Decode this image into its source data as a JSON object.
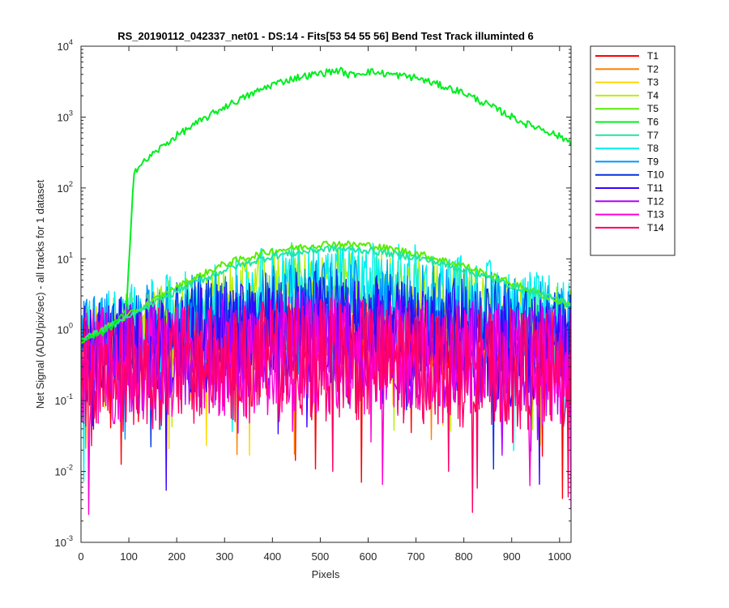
{
  "chart_data": {
    "type": "line",
    "title": "RS_20190112_042337_net01 - DS:14 - Fits[53  54  55  56]   Bend Test       Track illuminted 6",
    "xlabel": "Pixels",
    "ylabel": "Net Signal (ADU/pix/sec) - all tracks for 1 dataset",
    "xlim": [
      0,
      1024
    ],
    "ylim": [
      0.001,
      10000
    ],
    "yscale": "log",
    "grid": false,
    "legend_position": "outside-top-right",
    "x_ticks": [
      "0",
      "100",
      "200",
      "300",
      "400",
      "500",
      "600",
      "700",
      "800",
      "900",
      "1000"
    ],
    "y_ticks": [
      {
        "base": "10",
        "exp": "-3"
      },
      {
        "base": "10",
        "exp": "-2"
      },
      {
        "base": "10",
        "exp": "-1"
      },
      {
        "base": "10",
        "exp": "0"
      },
      {
        "base": "10",
        "exp": "1"
      },
      {
        "base": "10",
        "exp": "2"
      },
      {
        "base": "10",
        "exp": "3"
      },
      {
        "base": "10",
        "exp": "4"
      }
    ],
    "series": [
      {
        "name": "T1",
        "color": "#ff0000",
        "x": [
          0,
          200,
          400,
          520,
          700,
          900,
          1024
        ],
        "y": [
          0.4,
          0.55,
          0.75,
          0.8,
          0.72,
          0.5,
          0.4
        ]
      },
      {
        "name": "T2",
        "color": "#ff7f00",
        "x": [
          0,
          200,
          400,
          520,
          700,
          900,
          1024
        ],
        "y": [
          0.5,
          0.7,
          0.95,
          1.0,
          0.9,
          0.65,
          0.5
        ]
      },
      {
        "name": "T3",
        "color": "#ffd700",
        "x": [
          0,
          200,
          400,
          520,
          700,
          900,
          1024
        ],
        "y": [
          0.6,
          1.0,
          1.6,
          1.8,
          1.5,
          1.0,
          0.8
        ]
      },
      {
        "name": "T4",
        "color": "#b7f000",
        "x": [
          0,
          200,
          400,
          520,
          700,
          900,
          1024
        ],
        "y": [
          0.8,
          1.8,
          4.0,
          4.8,
          3.8,
          2.0,
          1.2
        ]
      },
      {
        "name": "T5",
        "color": "#55ee00",
        "x": [
          0,
          100,
          200,
          300,
          400,
          520,
          600,
          700,
          800,
          900,
          1024
        ],
        "y": [
          0.7,
          1.6,
          4.0,
          8.5,
          13.0,
          16.5,
          15.5,
          12.0,
          8.0,
          4.5,
          2.2
        ]
      },
      {
        "name": "T6",
        "color": "#00ee20",
        "x": [
          0,
          50,
          95,
          110,
          150,
          200,
          300,
          400,
          450,
          540,
          560,
          600,
          700,
          800,
          930,
          960,
          1024
        ],
        "y": [
          0.7,
          0.9,
          1.8,
          170,
          300,
          550,
          1400,
          2900,
          3600,
          4600,
          3900,
          4400,
          3600,
          2200,
          800,
          700,
          450
        ]
      },
      {
        "name": "T7",
        "color": "#20e6a0",
        "x": [
          0,
          100,
          200,
          300,
          400,
          520,
          600,
          700,
          800,
          900,
          1024
        ],
        "y": [
          0.7,
          1.5,
          3.5,
          7.0,
          11.0,
          14.0,
          13.2,
          10.5,
          7.0,
          4.2,
          2.3
        ]
      },
      {
        "name": "T8",
        "color": "#00f0f0",
        "x": [
          0,
          200,
          400,
          520,
          700,
          900,
          1024
        ],
        "y": [
          0.75,
          1.5,
          3.8,
          4.6,
          3.8,
          2.0,
          1.1
        ]
      },
      {
        "name": "T9",
        "color": "#0096ff",
        "x": [
          0,
          200,
          400,
          520,
          700,
          900,
          1024
        ],
        "y": [
          0.6,
          1.2,
          2.0,
          2.3,
          2.0,
          1.3,
          0.9
        ]
      },
      {
        "name": "T10",
        "color": "#0032e6",
        "x": [
          0,
          200,
          400,
          520,
          700,
          900,
          1024
        ],
        "y": [
          0.5,
          0.9,
          1.3,
          1.4,
          1.25,
          0.9,
          0.6
        ]
      },
      {
        "name": "T11",
        "color": "#3c00ff",
        "x": [
          0,
          200,
          400,
          520,
          700,
          900,
          1024
        ],
        "y": [
          0.45,
          0.65,
          0.9,
          1.0,
          0.85,
          0.6,
          0.45
        ]
      },
      {
        "name": "T12",
        "color": "#b400ff",
        "x": [
          0,
          200,
          400,
          520,
          700,
          900,
          1024
        ],
        "y": [
          0.35,
          0.45,
          0.55,
          0.6,
          0.52,
          0.42,
          0.35
        ]
      },
      {
        "name": "T13",
        "color": "#ff00d2",
        "x": [
          0,
          200,
          400,
          520,
          700,
          900,
          1024
        ],
        "y": [
          0.3,
          0.35,
          0.42,
          0.45,
          0.4,
          0.33,
          0.28
        ]
      },
      {
        "name": "T14",
        "color": "#ff0064",
        "x": [
          0,
          200,
          400,
          520,
          700,
          900,
          1024
        ],
        "y": [
          0.25,
          0.3,
          0.35,
          0.38,
          0.34,
          0.28,
          0.25
        ]
      }
    ]
  }
}
